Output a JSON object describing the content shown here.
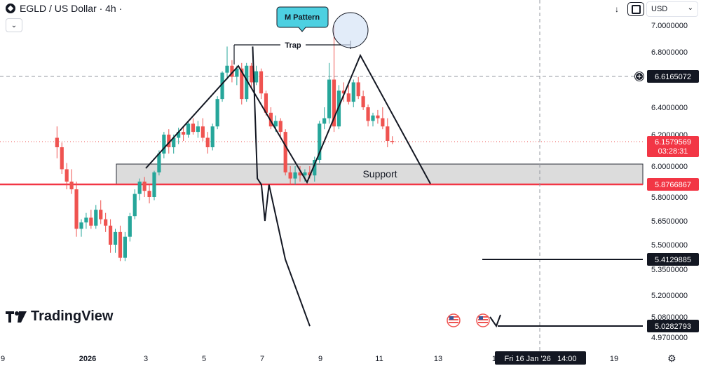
{
  "header": {
    "title": "EGLD / US Dollar · 4h ·",
    "currency": "USD"
  },
  "colors": {
    "up": "#26a69a",
    "down": "#ef5350",
    "support_line": "#f23645",
    "support_zone": "#d9d9d9",
    "annotation_bg": "#4dd0e1",
    "dark": "#131722"
  },
  "icons": [
    "egld-logo-icon",
    "chevron-down-icon",
    "arrow-down-icon",
    "fullscreen-icon",
    "chevron-down-icon",
    "plus-circle-icon",
    "us-flag-icon",
    "settings-gear-icon"
  ],
  "chart_data": {
    "type": "candlestick",
    "title": "EGLD / US Dollar · 4h ·",
    "x_tick_labels": [
      "9",
      "2026",
      "3",
      "5",
      "7",
      "9",
      "11",
      "13",
      "15",
      "19"
    ],
    "y_tick_labels": [
      "7.0000000",
      "6.8000000",
      "6.4000000",
      "6.2000000",
      "6.0000000",
      "5.8000000",
      "5.6500000",
      "5.5000000",
      "5.3500000",
      "5.2000000",
      "5.0800000",
      "4.9700000"
    ],
    "ylim": [
      4.95,
      7.06
    ],
    "current_price": "6.1579569",
    "countdown": "03:28:31",
    "crosshair_price": "6.6165072",
    "support_price": "5.8766867",
    "targets": [
      "5.4129885",
      "5.0282793"
    ],
    "crosshair_time": "Fri 16 Jan '26   14:00",
    "annotations": {
      "pattern": "M Pattern",
      "trap": "Trap",
      "support": "Support"
    },
    "candles": [
      [
        6.18,
        6.26,
        6.05,
        6.12
      ],
      [
        6.12,
        6.15,
        5.95,
        5.98
      ],
      [
        5.98,
        6.02,
        5.85,
        5.9
      ],
      [
        5.9,
        5.98,
        5.82,
        5.85
      ],
      [
        5.85,
        5.9,
        5.55,
        5.6
      ],
      [
        5.6,
        5.66,
        5.55,
        5.64
      ],
      [
        5.64,
        5.7,
        5.6,
        5.67
      ],
      [
        5.67,
        5.72,
        5.6,
        5.62
      ],
      [
        5.62,
        5.75,
        5.6,
        5.72
      ],
      [
        5.72,
        5.78,
        5.63,
        5.66
      ],
      [
        5.66,
        5.7,
        5.58,
        5.62
      ],
      [
        5.62,
        5.66,
        5.45,
        5.5
      ],
      [
        5.5,
        5.6,
        5.45,
        5.58
      ],
      [
        5.58,
        5.62,
        5.4,
        5.42
      ],
      [
        5.42,
        5.58,
        5.4,
        5.55
      ],
      [
        5.55,
        5.7,
        5.52,
        5.68
      ],
      [
        5.68,
        5.85,
        5.66,
        5.82
      ],
      [
        5.82,
        5.92,
        5.78,
        5.9
      ],
      [
        5.9,
        5.93,
        5.8,
        5.84
      ],
      [
        5.84,
        5.88,
        5.76,
        5.8
      ],
      [
        5.8,
        5.97,
        5.78,
        5.96
      ],
      [
        5.96,
        6.1,
        5.94,
        6.08
      ],
      [
        6.08,
        6.22,
        6.05,
        6.2
      ],
      [
        6.2,
        6.24,
        6.08,
        6.12
      ],
      [
        6.12,
        6.2,
        6.08,
        6.18
      ],
      [
        6.18,
        6.25,
        6.14,
        6.22
      ],
      [
        6.22,
        6.26,
        6.16,
        6.2
      ],
      [
        6.2,
        6.3,
        6.18,
        6.28
      ],
      [
        6.28,
        6.32,
        6.2,
        6.22
      ],
      [
        6.22,
        6.3,
        6.18,
        6.26
      ],
      [
        6.26,
        6.32,
        6.16,
        6.18
      ],
      [
        6.18,
        6.22,
        6.08,
        6.12
      ],
      [
        6.12,
        6.28,
        6.1,
        6.26
      ],
      [
        6.26,
        6.48,
        6.24,
        6.46
      ],
      [
        6.46,
        6.66,
        6.44,
        6.65
      ],
      [
        6.65,
        6.84,
        6.6,
        6.7
      ],
      [
        6.7,
        6.74,
        6.58,
        6.62
      ],
      [
        6.62,
        6.7,
        6.56,
        6.68
      ],
      [
        6.68,
        6.72,
        6.42,
        6.46
      ],
      [
        6.46,
        6.72,
        6.44,
        6.7
      ],
      [
        6.7,
        6.72,
        6.54,
        6.58
      ],
      [
        6.58,
        6.7,
        6.56,
        6.66
      ],
      [
        6.66,
        6.68,
        6.46,
        6.5
      ],
      [
        6.5,
        6.52,
        6.34,
        6.36
      ],
      [
        6.36,
        6.4,
        6.24,
        6.26
      ],
      [
        6.26,
        6.34,
        6.22,
        6.3
      ],
      [
        6.3,
        6.32,
        6.18,
        6.22
      ],
      [
        6.22,
        6.24,
        5.94,
        5.96
      ],
      [
        5.96,
        6.0,
        5.88,
        5.92
      ],
      [
        5.92,
        6.0,
        5.88,
        5.96
      ],
      [
        5.96,
        6.0,
        5.9,
        5.94
      ],
      [
        5.94,
        5.98,
        5.9,
        5.96
      ],
      [
        5.96,
        6.0,
        5.92,
        5.94
      ],
      [
        5.94,
        6.06,
        5.9,
        6.04
      ],
      [
        6.04,
        6.3,
        6.02,
        6.28
      ],
      [
        6.28,
        6.4,
        6.24,
        6.32
      ],
      [
        6.32,
        6.72,
        6.28,
        6.6
      ],
      [
        6.6,
        7.0,
        6.22,
        6.26
      ],
      [
        6.26,
        6.56,
        6.24,
        6.52
      ],
      [
        6.52,
        6.58,
        6.44,
        6.5
      ],
      [
        6.5,
        6.56,
        6.42,
        6.44
      ],
      [
        6.44,
        6.6,
        6.4,
        6.58
      ],
      [
        6.58,
        6.62,
        6.46,
        6.48
      ],
      [
        6.48,
        6.52,
        6.38,
        6.4
      ],
      [
        6.4,
        6.42,
        6.26,
        6.3
      ],
      [
        6.3,
        6.36,
        6.26,
        6.34
      ],
      [
        6.34,
        6.38,
        6.28,
        6.32
      ],
      [
        6.32,
        6.4,
        6.24,
        6.26
      ],
      [
        6.26,
        6.32,
        6.12,
        6.16
      ],
      [
        6.16,
        6.19,
        6.14,
        6.158
      ]
    ],
    "projection": [
      [
        6.66,
        6.84
      ],
      [
        6.82,
        5.92
      ],
      [
        6.96,
        5.88
      ],
      [
        7.08,
        5.65
      ],
      [
        7.22,
        5.88
      ],
      [
        7.78,
        5.41
      ],
      [
        8.62,
        5.03
      ]
    ]
  }
}
